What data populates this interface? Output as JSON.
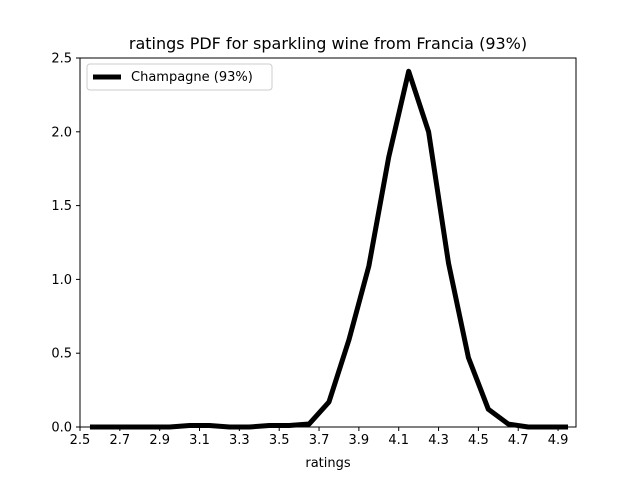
{
  "chart_data": {
    "type": "line",
    "title": "ratings PDF for sparkling wine from Francia (93%)",
    "xlabel": "ratings",
    "ylabel": "",
    "xlim": [
      2.5,
      4.99
    ],
    "ylim": [
      0,
      2.5
    ],
    "xticks": [
      2.5,
      2.7,
      2.9,
      3.1,
      3.3,
      3.5,
      3.7,
      3.9,
      4.1,
      4.3,
      4.5,
      4.7,
      4.9
    ],
    "xtick_labels": [
      "2.5",
      "2.7",
      "2.9",
      "3.1",
      "3.3",
      "3.5",
      "3.7",
      "3.9",
      "4.1",
      "4.3",
      "4.5",
      "4.7",
      "4.9"
    ],
    "yticks": [
      0.0,
      0.5,
      1.0,
      1.5,
      2.0,
      2.5
    ],
    "ytick_labels": [
      "0.0",
      "0.5",
      "1.0",
      "1.5",
      "2.0",
      "2.5"
    ],
    "grid": false,
    "legend_position": "upper-left",
    "series": [
      {
        "name": "Champagne (93%)",
        "color": "#000000",
        "x": [
          2.55,
          2.65,
          2.75,
          2.85,
          2.95,
          3.05,
          3.15,
          3.25,
          3.35,
          3.45,
          3.55,
          3.65,
          3.75,
          3.85,
          3.95,
          4.05,
          4.15,
          4.25,
          4.35,
          4.45,
          4.55,
          4.65,
          4.75,
          4.85,
          4.95
        ],
        "y": [
          0.0,
          0.0,
          0.0,
          0.0,
          0.0,
          0.01,
          0.01,
          0.0,
          0.0,
          0.01,
          0.01,
          0.02,
          0.17,
          0.59,
          1.09,
          1.83,
          2.41,
          2.0,
          1.11,
          0.47,
          0.12,
          0.02,
          0.0,
          0.0,
          0.0
        ]
      }
    ]
  }
}
